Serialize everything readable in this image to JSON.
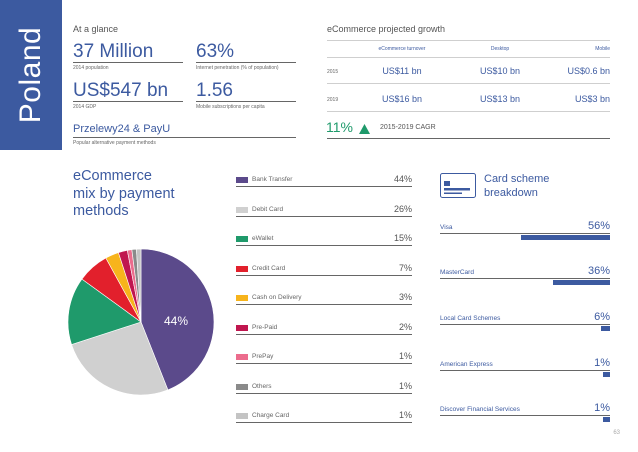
{
  "country": "Poland",
  "glance": {
    "title": "At a glance",
    "population": {
      "value": "37 Million",
      "label": "2014 population"
    },
    "penetration": {
      "value": "63%",
      "label": "Internet penetration (% of population)"
    },
    "gdp": {
      "value": "US$547 bn",
      "label": "2014 GDP"
    },
    "mobile": {
      "value": "1.56",
      "label": "Mobile subscriptions per capita"
    },
    "payment": {
      "value": "Przelewy24 & PayU",
      "label": "Popular alternative payment methods"
    }
  },
  "growth": {
    "title": "eCommerce projected growth",
    "headers": [
      "eCommerce turnover",
      "Desktop",
      "Mobile"
    ],
    "rows": [
      {
        "year": "2015",
        "turnover": "US$11 bn",
        "desktop": "US$10 bn",
        "mobile": "US$0.6 bn"
      },
      {
        "year": "2019",
        "turnover": "US$16 bn",
        "desktop": "US$13 bn",
        "mobile": "US$3 bn"
      }
    ],
    "cagr_value": "11%",
    "cagr_label": "2015-2019 CAGR"
  },
  "mix": {
    "title_line1": "eCommerce",
    "title_line2": "mix by payment",
    "title_line3": "methods",
    "pie_label": "44%"
  },
  "chart_data": [
    {
      "type": "pie",
      "title": "eCommerce mix by payment methods",
      "categories": [
        "Bank Transfer",
        "Debit Card",
        "eWallet",
        "Credit Card",
        "Cash on Delivery",
        "Pre-Paid",
        "PrePay",
        "Others",
        "Charge Card"
      ],
      "values": [
        44,
        26,
        15,
        7,
        3,
        2,
        1,
        1,
        1
      ],
      "display": [
        "44%",
        "26%",
        "15%",
        "7%",
        "3%",
        "2%",
        "1%",
        "1%",
        "1%"
      ],
      "colors": [
        "#5b4a8b",
        "#d0d0d0",
        "#1f9a6b",
        "#e2202c",
        "#f7b41c",
        "#c0164f",
        "#ec6c8d",
        "#8a8a8a",
        "#c4c4c4"
      ]
    },
    {
      "type": "bar",
      "title": "Card scheme breakdown",
      "categories": [
        "Visa",
        "MasterCard",
        "Local Card Schemes",
        "American Express",
        "Discover Financial Services"
      ],
      "values": [
        56,
        36,
        6,
        1,
        1
      ],
      "display": [
        "56%",
        "36%",
        "6%",
        "1%",
        "1%"
      ],
      "xlim": [
        0,
        100
      ]
    }
  ],
  "card": {
    "title_line1": "Card scheme",
    "title_line2": "breakdown"
  },
  "page_number": "63",
  "colors": {
    "accent": "#3c5aa0"
  }
}
